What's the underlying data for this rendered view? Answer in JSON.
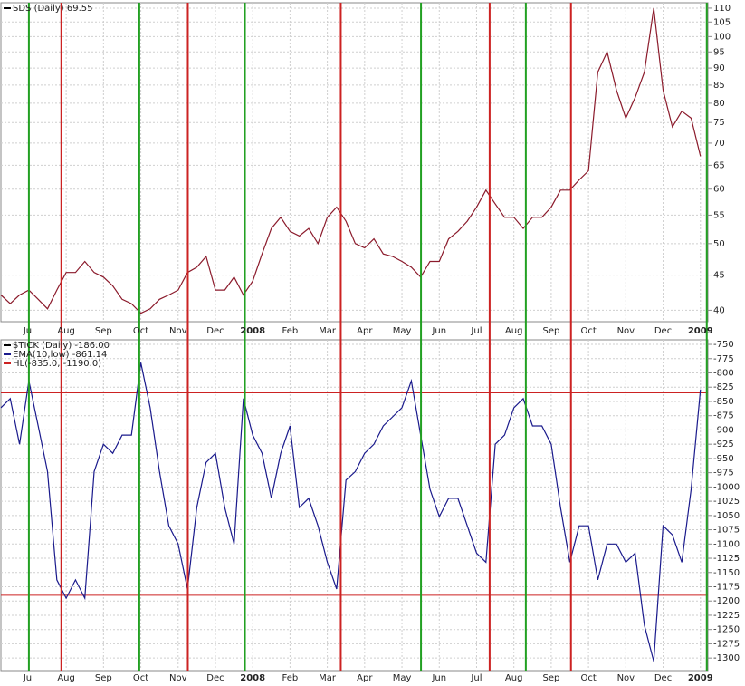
{
  "chart_data": [
    {
      "type": "line",
      "title": "SDS (Daily) 69.55",
      "log": true,
      "grid": true,
      "x": [
        -0.75,
        -0.5,
        -0.25,
        0,
        0.25,
        0.5,
        0.75,
        1,
        1.25,
        1.5,
        1.75,
        2,
        2.25,
        2.5,
        2.75,
        3,
        3.25,
        3.5,
        3.75,
        4,
        4.25,
        4.5,
        4.75,
        5,
        5.25,
        5.5,
        5.75,
        6,
        6.25,
        6.5,
        6.75,
        7,
        7.25,
        7.5,
        7.75,
        8,
        8.25,
        8.5,
        8.75,
        9,
        9.25,
        9.5,
        9.75,
        10,
        10.25,
        10.5,
        10.75,
        11,
        11.25,
        11.5,
        11.75,
        12,
        12.25,
        12.5,
        12.75,
        13,
        13.25,
        13.5,
        13.75,
        14,
        14.25,
        14.5,
        14.75,
        15,
        15.25,
        15.5,
        15.75,
        16,
        16.25,
        16.5,
        16.75,
        17,
        17.25,
        17.5,
        17.75,
        18
      ],
      "series": [
        {
          "name": "SDS (Daily) 69.55",
          "color": "#8b1a2b",
          "values": [
            42.1,
            40.9,
            42.1,
            42.8,
            41.5,
            40.2,
            42.8,
            45.4,
            45.4,
            47.1,
            45.4,
            44.7,
            43.4,
            41.5,
            40.9,
            39.6,
            40.2,
            41.5,
            42.1,
            42.8,
            45.4,
            46.2,
            47.9,
            42.8,
            42.8,
            44.7,
            42.1,
            44.1,
            48.3,
            52.6,
            54.6,
            52.1,
            51.3,
            52.6,
            50.0,
            54.6,
            56.5,
            53.9,
            50.0,
            49.3,
            50.8,
            48.3,
            47.9,
            47.1,
            46.2,
            44.7,
            47.1,
            47.1,
            50.8,
            52.1,
            53.9,
            56.5,
            59.8,
            57.1,
            54.6,
            54.6,
            52.6,
            54.6,
            54.6,
            56.5,
            59.8,
            59.8,
            61.9,
            63.8,
            88.8,
            95.0,
            83.6,
            76.1,
            81.5,
            88.8,
            110.0,
            83.6,
            73.9,
            77.9,
            76.1,
            67.0
          ]
        }
      ],
      "signals": [
        {
          "color": "#22a022",
          "x": [
            0,
            2.96,
            5.79,
            10.51,
            13.32,
            18.17
          ]
        },
        {
          "color": "#cc2222",
          "x": [
            0.87,
            4.26,
            8.36,
            12.35,
            14.53
          ]
        }
      ],
      "xlim": [
        -0.75,
        18.2
      ],
      "xticks": [
        {
          "value": 0,
          "label": "Jul"
        },
        {
          "value": 1,
          "label": "Aug"
        },
        {
          "value": 2,
          "label": "Sep"
        },
        {
          "value": 3,
          "label": "Oct"
        },
        {
          "value": 4,
          "label": "Nov"
        },
        {
          "value": 5,
          "label": "Dec"
        },
        {
          "value": 6,
          "label": "2008"
        },
        {
          "value": 7,
          "label": "Feb"
        },
        {
          "value": 8,
          "label": "Mar"
        },
        {
          "value": 9,
          "label": "Apr"
        },
        {
          "value": 10,
          "label": "May"
        },
        {
          "value": 11,
          "label": "Jun"
        },
        {
          "value": 12,
          "label": "Jul"
        },
        {
          "value": 13,
          "label": "Aug"
        },
        {
          "value": 14,
          "label": "Sep"
        },
        {
          "value": 15,
          "label": "Oct"
        },
        {
          "value": 16,
          "label": "Nov"
        },
        {
          "value": 17,
          "label": "Dec"
        },
        {
          "value": 18,
          "label": "2009"
        }
      ],
      "ylim": [
        38.5,
        112
      ],
      "yticks": [
        40,
        45,
        50,
        55,
        60,
        65,
        70,
        75,
        80,
        85,
        90,
        95,
        100,
        105,
        110
      ]
    },
    {
      "type": "line",
      "title": "$TICK (Daily) -186.00",
      "log": false,
      "grid": true,
      "x": [
        -0.75,
        -0.5,
        -0.25,
        0,
        0.25,
        0.5,
        0.75,
        1,
        1.25,
        1.5,
        1.75,
        2,
        2.25,
        2.5,
        2.75,
        3,
        3.25,
        3.5,
        3.75,
        4,
        4.25,
        4.5,
        4.75,
        5,
        5.25,
        5.5,
        5.75,
        6,
        6.25,
        6.5,
        6.75,
        7,
        7.25,
        7.5,
        7.75,
        8,
        8.25,
        8.5,
        8.75,
        9,
        9.25,
        9.5,
        9.75,
        10,
        10.25,
        10.5,
        10.75,
        11,
        11.25,
        11.5,
        11.75,
        12,
        12.25,
        12.5,
        12.75,
        13,
        13.25,
        13.5,
        13.75,
        14,
        14.25,
        14.5,
        14.75,
        15,
        15.25,
        15.5,
        15.75,
        16,
        16.25,
        16.5,
        16.75,
        17,
        17.25,
        17.5,
        17.75,
        18
      ],
      "series": [
        {
          "name": "EMA(10,low) -861.14",
          "color": "#1a1a8c",
          "values": [
            -861,
            -845,
            -925,
            -814,
            -893,
            -973,
            -1163,
            -1195,
            -1163,
            -1195,
            -973,
            -925,
            -941,
            -909,
            -909,
            -782,
            -861,
            -973,
            -1068,
            -1100,
            -1179,
            -1036,
            -957,
            -941,
            -1036,
            -1100,
            -845,
            -909,
            -941,
            -1020,
            -941,
            -893,
            -1036,
            -1020,
            -1068,
            -1132,
            -1179,
            -988,
            -973,
            -941,
            -925,
            -893,
            -877,
            -861,
            -814,
            -909,
            -1004,
            -1052,
            -1020,
            -1020,
            -1068,
            -1116,
            -1132,
            -925,
            -909,
            -861,
            -845,
            -893,
            -893,
            -925,
            -1036,
            -1132,
            -1068,
            -1068,
            -1163,
            -1100,
            -1100,
            -1132,
            -1116,
            -1243,
            -1306,
            -1068,
            -1084,
            -1132,
            -1004,
            -829
          ]
        }
      ],
      "hlines": {
        "name": "HL(-835.0, -1190.0)",
        "color": "#cc2222",
        "values": [
          -835,
          -1190
        ]
      },
      "xlim": [
        -0.75,
        18.2
      ],
      "xticks": [
        {
          "value": 0,
          "label": "Jul"
        },
        {
          "value": 1,
          "label": "Aug"
        },
        {
          "value": 2,
          "label": "Sep"
        },
        {
          "value": 3,
          "label": "Oct"
        },
        {
          "value": 4,
          "label": "Nov"
        },
        {
          "value": 5,
          "label": "Dec"
        },
        {
          "value": 6,
          "label": "2008"
        },
        {
          "value": 7,
          "label": "Feb"
        },
        {
          "value": 8,
          "label": "Mar"
        },
        {
          "value": 9,
          "label": "Apr"
        },
        {
          "value": 10,
          "label": "May"
        },
        {
          "value": 11,
          "label": "Jun"
        },
        {
          "value": 12,
          "label": "Jul"
        },
        {
          "value": 13,
          "label": "Aug"
        },
        {
          "value": 14,
          "label": "Sep"
        },
        {
          "value": 15,
          "label": "Oct"
        },
        {
          "value": 16,
          "label": "Nov"
        },
        {
          "value": 17,
          "label": "Dec"
        },
        {
          "value": 18,
          "label": "2009"
        }
      ],
      "ylim": [
        -1322,
        -742
      ],
      "yticks": [
        -750,
        -775,
        -800,
        -825,
        -850,
        -875,
        -900,
        -925,
        -950,
        -975,
        -1000,
        -1025,
        -1050,
        -1075,
        -1100,
        -1125,
        -1150,
        -1175,
        -1200,
        -1225,
        -1250,
        -1275,
        -1300
      ]
    }
  ]
}
